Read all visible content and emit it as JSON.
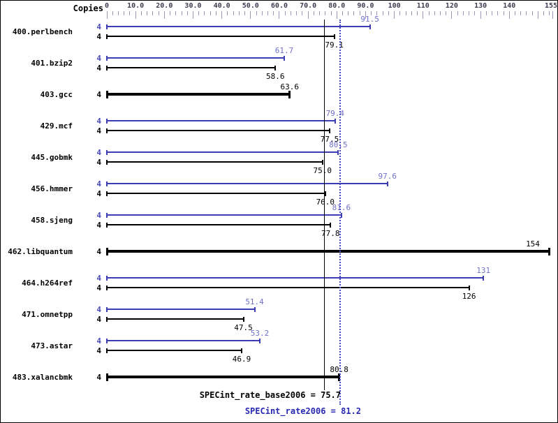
{
  "header": {
    "copies_label": "Copies"
  },
  "colors": {
    "background": "#ffffff",
    "peak_bar": "#3c3cb4",
    "peak_value_label": "#7070cc",
    "peak_copies": "#4848bc",
    "peak_mean_text": "#2828b0",
    "dotted_line": "#4848c0",
    "base_bar": "#000000",
    "axis_tick": "#9898b8",
    "axis_text": "#3c3c50"
  },
  "chart_data": {
    "type": "bar",
    "orientation": "horizontal",
    "title": "",
    "xlabel": "",
    "ylabel": "Copies",
    "xlim": [
      0,
      155
    ],
    "grid": false,
    "minor_tick_step": 2,
    "axis_ticks": [
      {
        "value": 0,
        "label": "0"
      },
      {
        "value": 10,
        "label": "10.0"
      },
      {
        "value": 20,
        "label": "20.0"
      },
      {
        "value": 30,
        "label": "30.0"
      },
      {
        "value": 40,
        "label": "40.0"
      },
      {
        "value": 50,
        "label": "50.0"
      },
      {
        "value": 60,
        "label": "60.0"
      },
      {
        "value": 70,
        "label": "70.0"
      },
      {
        "value": 80,
        "label": "80.0"
      },
      {
        "value": 90,
        "label": "90.0"
      },
      {
        "value": 100,
        "label": "100"
      },
      {
        "value": 110,
        "label": "110"
      },
      {
        "value": 120,
        "label": "120"
      },
      {
        "value": 130,
        "label": "130"
      },
      {
        "value": 140,
        "label": "140"
      },
      {
        "value": 150,
        "label": ""
      },
      {
        "value": 155,
        "label": "155"
      }
    ],
    "benchmarks": [
      {
        "name": "400.perlbench",
        "copies": "4",
        "peak": 91.5,
        "peak_label": "91.5",
        "base": 79.1,
        "base_label": "79.1",
        "single": false
      },
      {
        "name": "401.bzip2",
        "copies": "4",
        "peak": 61.7,
        "peak_label": "61.7",
        "base": 58.6,
        "base_label": "58.6",
        "single": false
      },
      {
        "name": "403.gcc",
        "copies": "4",
        "base": 63.6,
        "base_label": "63.6",
        "single": true
      },
      {
        "name": "429.mcf",
        "copies": "4",
        "peak": 79.4,
        "peak_label": "79.4",
        "base": 77.5,
        "base_label": "77.5",
        "single": false
      },
      {
        "name": "445.gobmk",
        "copies": "4",
        "peak": 80.5,
        "peak_label": "80.5",
        "base": 75.0,
        "base_label": "75.0",
        "single": false
      },
      {
        "name": "456.hmmer",
        "copies": "4",
        "peak": 97.6,
        "peak_label": "97.6",
        "base": 76.0,
        "base_label": "76.0",
        "single": false
      },
      {
        "name": "458.sjeng",
        "copies": "4",
        "peak": 81.6,
        "peak_label": "81.6",
        "base": 77.8,
        "base_label": "77.8",
        "single": false
      },
      {
        "name": "462.libquantum",
        "copies": "4",
        "base": 154,
        "base_label": "154",
        "single": true
      },
      {
        "name": "464.h264ref",
        "copies": "4",
        "peak": 131,
        "peak_label": "131",
        "base": 126,
        "base_label": "126",
        "single": false
      },
      {
        "name": "471.omnetpp",
        "copies": "4",
        "peak": 51.4,
        "peak_label": "51.4",
        "base": 47.5,
        "base_label": "47.5",
        "single": false
      },
      {
        "name": "473.astar",
        "copies": "4",
        "peak": 53.2,
        "peak_label": "53.2",
        "base": 46.9,
        "base_label": "46.9",
        "single": false
      },
      {
        "name": "483.xalancbmk",
        "copies": "4",
        "base": 80.8,
        "base_label": "80.8",
        "single": true
      }
    ],
    "means": {
      "base": {
        "label": "SPECint_rate_base2006 = 75.7",
        "value": 75.7
      },
      "peak": {
        "label": "SPECint_rate2006 = 81.2",
        "value": 81.2
      }
    }
  }
}
